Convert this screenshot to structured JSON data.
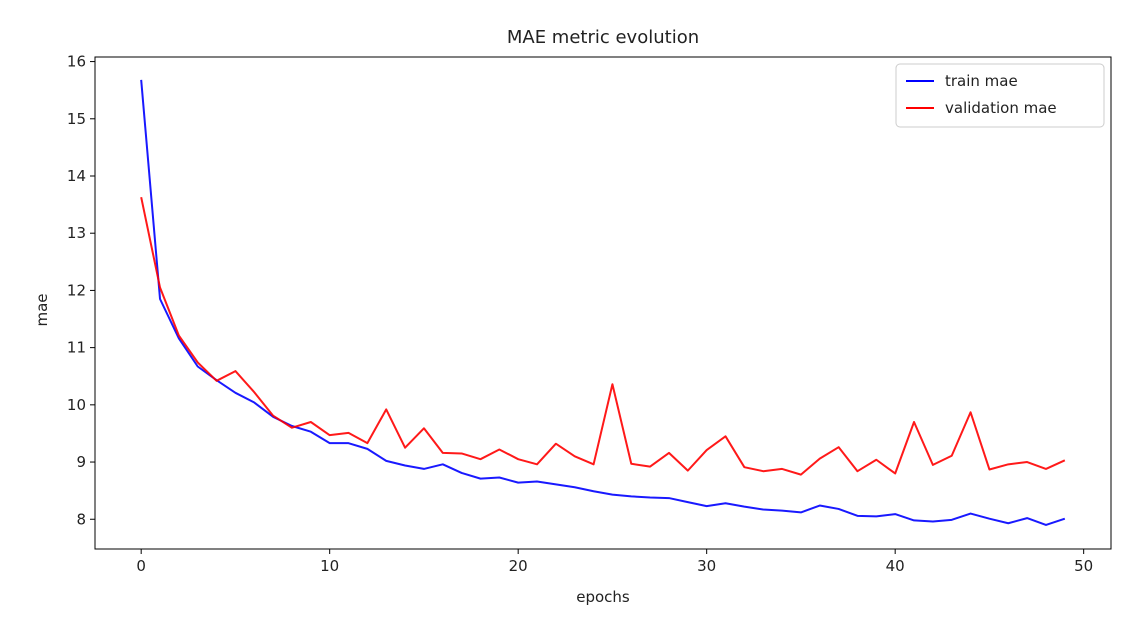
{
  "chart_data": {
    "type": "line",
    "title": "MAE metric evolution",
    "xlabel": "epochs",
    "ylabel": "mae",
    "xlim": [
      -2.45,
      51.45
    ],
    "ylim": [
      7.48,
      16.08
    ],
    "xticks": [
      0,
      10,
      20,
      30,
      40,
      50
    ],
    "yticks": [
      8,
      9,
      10,
      11,
      12,
      13,
      14,
      15,
      16
    ],
    "grid": false,
    "legend_position": "top-right",
    "x": [
      0,
      1,
      2,
      3,
      4,
      5,
      6,
      7,
      8,
      9,
      10,
      11,
      12,
      13,
      14,
      15,
      16,
      17,
      18,
      19,
      20,
      21,
      22,
      23,
      24,
      25,
      26,
      27,
      28,
      29,
      30,
      31,
      32,
      33,
      34,
      35,
      36,
      37,
      38,
      39,
      40,
      41,
      42,
      43,
      44,
      45,
      46,
      47,
      48,
      49
    ],
    "series": [
      {
        "name": "train mae",
        "color": "#0000ff",
        "values": [
          15.68,
          11.85,
          11.16,
          10.67,
          10.43,
          10.21,
          10.04,
          9.79,
          9.63,
          9.53,
          9.33,
          9.33,
          9.23,
          9.02,
          8.94,
          8.88,
          8.96,
          8.81,
          8.71,
          8.73,
          8.64,
          8.66,
          8.61,
          8.56,
          8.49,
          8.43,
          8.4,
          8.38,
          8.37,
          8.3,
          8.23,
          8.28,
          8.22,
          8.17,
          8.15,
          8.12,
          8.24,
          8.18,
          8.06,
          8.05,
          8.09,
          7.98,
          7.96,
          7.99,
          8.1,
          8.01,
          7.93,
          8.02,
          7.9,
          8.01
        ]
      },
      {
        "name": "validation mae",
        "color": "#ff0000",
        "values": [
          13.63,
          12.05,
          11.21,
          10.74,
          10.42,
          10.59,
          10.22,
          9.81,
          9.6,
          9.7,
          9.47,
          9.51,
          9.33,
          9.92,
          9.25,
          9.59,
          9.16,
          9.15,
          9.05,
          9.22,
          9.05,
          8.96,
          9.32,
          9.1,
          8.96,
          10.36,
          8.97,
          8.92,
          9.16,
          8.85,
          9.21,
          9.45,
          8.91,
          8.84,
          8.88,
          8.78,
          9.06,
          9.26,
          8.84,
          9.04,
          8.8,
          9.7,
          8.95,
          9.11,
          9.87,
          8.87,
          8.96,
          9.0,
          8.88,
          9.03
        ]
      }
    ]
  }
}
